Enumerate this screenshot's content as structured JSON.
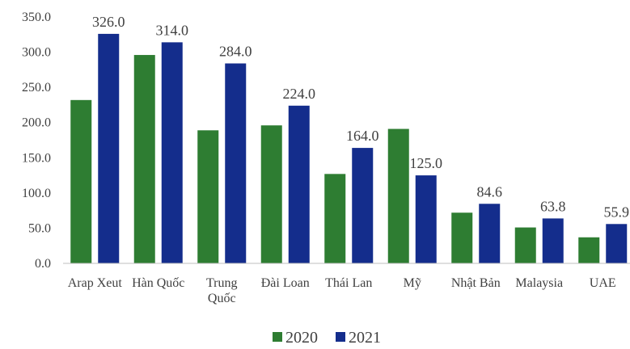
{
  "chart_data": {
    "type": "bar",
    "categories": [
      [
        "Arap Xeut"
      ],
      [
        "Hàn Quốc"
      ],
      [
        "Trung",
        "Quốc"
      ],
      [
        "Đài Loan"
      ],
      [
        "Thái Lan"
      ],
      [
        "Mỹ"
      ],
      [
        "Nhật Bản"
      ],
      [
        "Malaysia"
      ],
      [
        "UAE"
      ]
    ],
    "series": [
      {
        "name": "2020",
        "color": "#2e7d32",
        "values": [
          232,
          296,
          189,
          196,
          127,
          191,
          72,
          51,
          37
        ],
        "labels": null
      },
      {
        "name": "2021",
        "color": "#142d8c",
        "values": [
          326,
          314,
          284,
          224,
          164,
          125,
          84.6,
          63.8,
          55.9
        ],
        "labels": [
          "326.0",
          "314.0",
          "284.0",
          "224.0",
          "164.0",
          "125.0",
          "84.6",
          "63.8",
          "55.9"
        ]
      }
    ],
    "yticks": [
      "0.0",
      "50.0",
      "100.0",
      "150.0",
      "200.0",
      "250.0",
      "300.0",
      "350.0"
    ],
    "ylim": [
      0,
      350
    ],
    "grid": false,
    "legend": "bottom"
  }
}
